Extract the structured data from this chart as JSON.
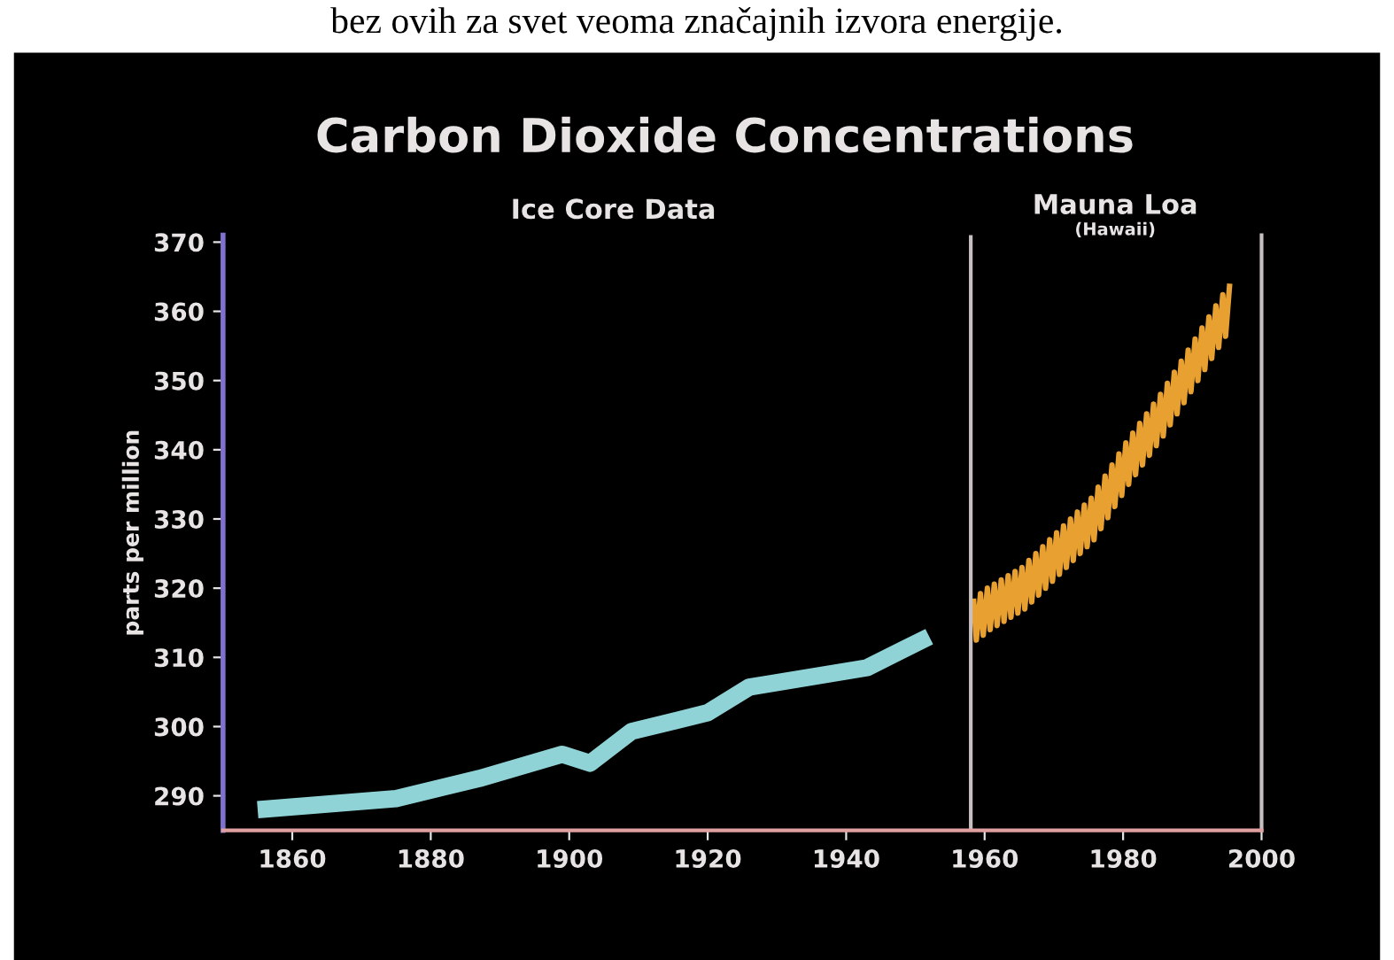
{
  "chart_data": {
    "type": "line",
    "title": "Carbon Dioxide Concentrations",
    "ylabel": "parts per million",
    "xlim": [
      1850,
      2000
    ],
    "xticks": [
      1860,
      1880,
      1900,
      1920,
      1940,
      1960,
      1980,
      2000
    ],
    "ylim": [
      285,
      371
    ],
    "yticks": [
      290,
      300,
      310,
      320,
      330,
      340,
      350,
      360,
      370
    ],
    "grid": false,
    "marker": "none",
    "line_style": "solid",
    "ref_lines": [
      {
        "axis": "x",
        "value": 1958,
        "label": null,
        "color": "#c8c0c0"
      }
    ],
    "annotations": [
      "bez ovih za svet veoma značajnih izvora energije.",
      "Ice Core Data",
      "Mauna Loa",
      "(Hawaii)"
    ],
    "series": [
      {
        "color": "#8fd3d6",
        "x": [
          1855,
          1875,
          1887,
          1899,
          1903,
          1909,
          1920,
          1926,
          1943,
          1952
        ],
        "values": [
          288,
          289.6,
          292.5,
          296,
          294.7,
          299.3,
          302,
          305.7,
          308.5,
          313
        ]
      },
      {
        "color": "#e8a030",
        "x": [
          1958.4,
          1958.8,
          1959.4,
          1959.8,
          1960.4,
          1960.8,
          1961.4,
          1961.8,
          1962.4,
          1962.8,
          1963.4,
          1963.8,
          1964.4,
          1964.8,
          1965.4,
          1965.8,
          1966.4,
          1966.8,
          1967.4,
          1967.8,
          1968.4,
          1968.8,
          1969.4,
          1969.8,
          1970.4,
          1970.8,
          1971.4,
          1971.8,
          1972.4,
          1972.8,
          1973.4,
          1973.8,
          1974.4,
          1974.8,
          1975.4,
          1975.8,
          1976.4,
          1976.8,
          1977.4,
          1977.8,
          1978.4,
          1978.8,
          1979.4,
          1979.8,
          1980.4,
          1980.8,
          1981.4,
          1981.8,
          1982.4,
          1982.8,
          1983.4,
          1983.8,
          1984.4,
          1984.8,
          1985.4,
          1985.8,
          1986.4,
          1986.8,
          1987.4,
          1987.8,
          1988.4,
          1988.8,
          1989.4,
          1989.8,
          1990.4,
          1990.8,
          1991.4,
          1991.8,
          1992.4,
          1992.8,
          1993.4,
          1993.8,
          1994.4,
          1994.8,
          1995.4
        ],
        "values": [
          318.5,
          312.5,
          319.2,
          313.2,
          320,
          314,
          320.6,
          314.6,
          321.2,
          315.2,
          321.8,
          315.8,
          322.4,
          316.4,
          323,
          317,
          324,
          318,
          325,
          319,
          326,
          320,
          327,
          321,
          328,
          322,
          329,
          323,
          330,
          324,
          331,
          325,
          332,
          326,
          333,
          327,
          334.6,
          328.6,
          336.2,
          330.2,
          337.8,
          331.8,
          339.4,
          333.4,
          341,
          335,
          342.4,
          336.4,
          343.8,
          337.8,
          345.2,
          339.2,
          346.6,
          340.6,
          348,
          342,
          349.6,
          343.6,
          351.2,
          345.2,
          352.8,
          346.8,
          354.4,
          348.4,
          356,
          350,
          357.6,
          351.6,
          359.2,
          353.2,
          360.8,
          354.8,
          362.4,
          356.4,
          364
        ]
      }
    ]
  }
}
